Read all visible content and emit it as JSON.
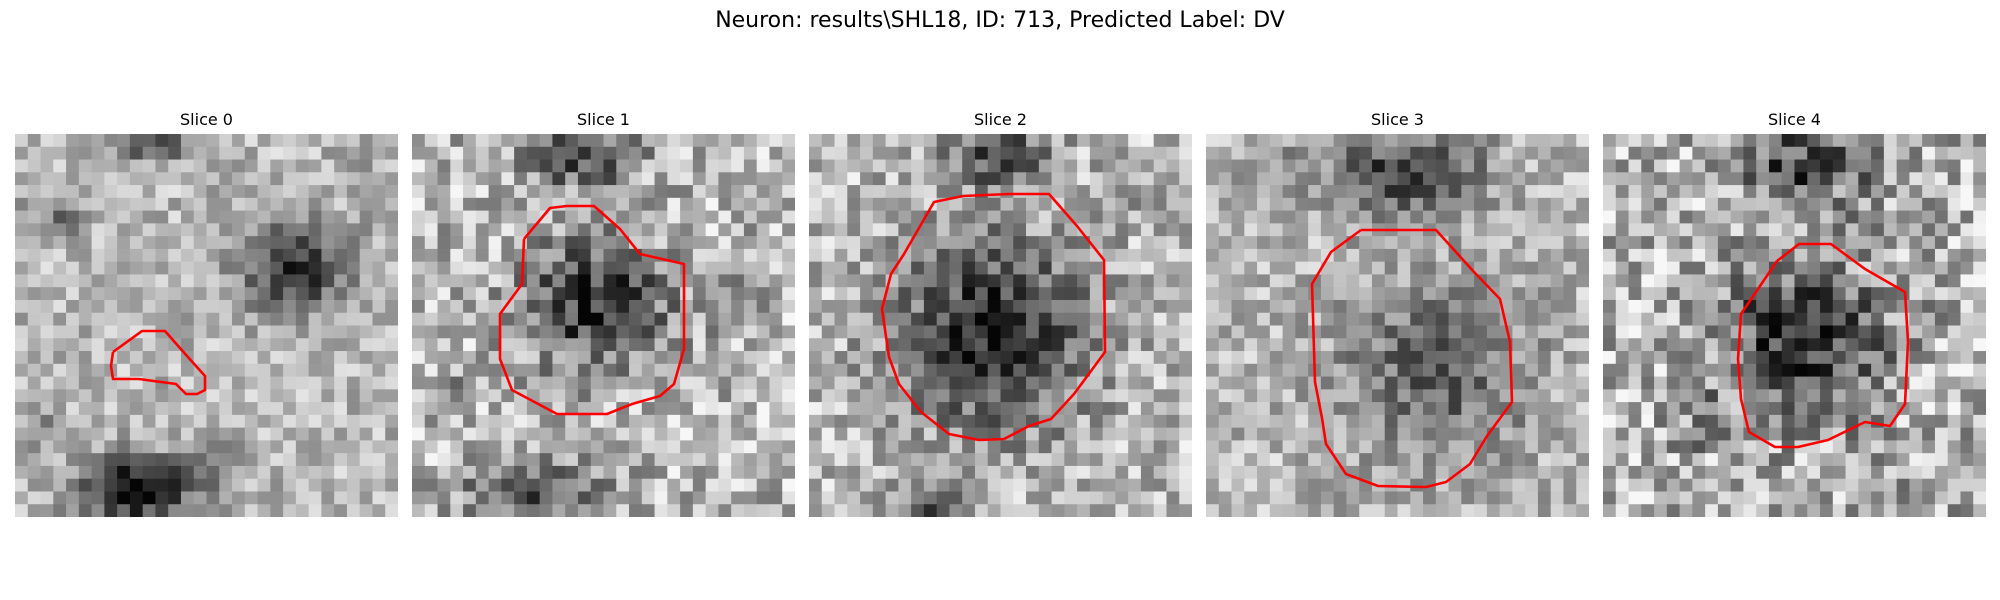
{
  "figure": {
    "title": "Neuron: results\\SHL18, ID: 713, Predicted Label: DV",
    "contour_color": "#ff0000"
  },
  "slices": [
    {
      "title": "Slice 0"
    },
    {
      "title": "Slice 1"
    },
    {
      "title": "Slice 2"
    },
    {
      "title": "Slice 3"
    },
    {
      "title": "Slice 4"
    }
  ]
}
